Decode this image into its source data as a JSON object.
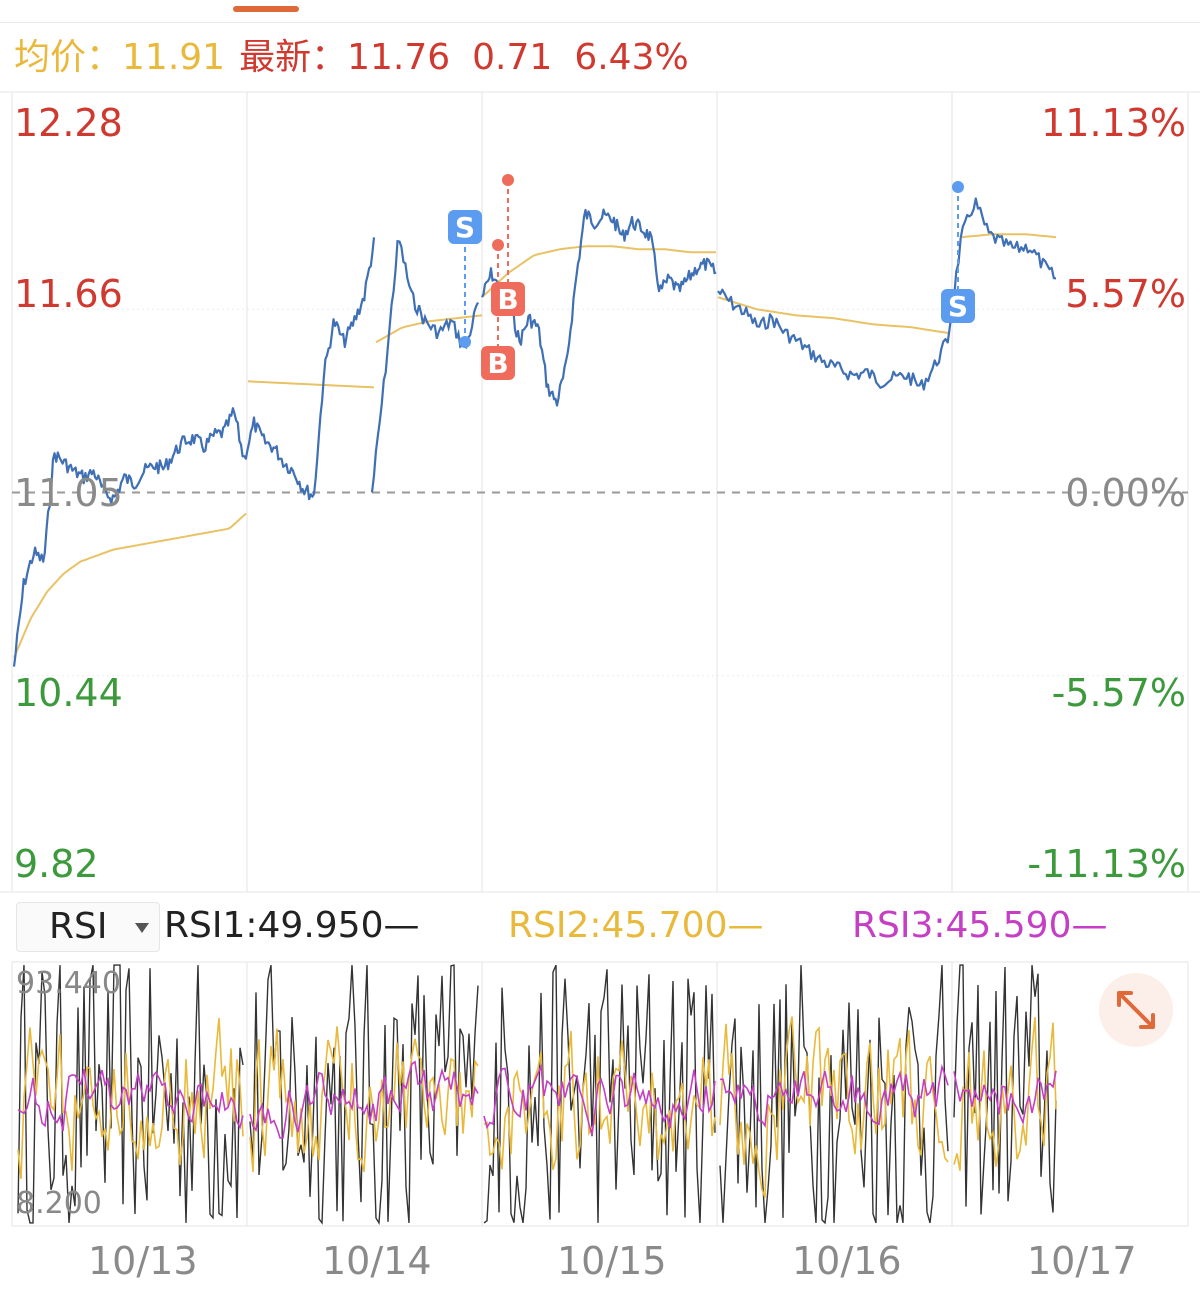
{
  "header": {
    "avg_label": "均价：",
    "avg_value": "11.91",
    "latest_label": "最新：",
    "latest_value": "11.76",
    "change": "0.71",
    "change_pct": "6.43%"
  },
  "colors": {
    "price_line": "#3f6fb4",
    "avg_line": "#e9c265",
    "up": "#d0392f",
    "down": "#3c9a3c",
    "neutral": "#8a8a8a",
    "rsi1": "#333333",
    "rsi2": "#e9b93c",
    "rsi3": "#c43fc4",
    "sell_marker": "#5b9bf0",
    "buy_marker": "#ef6b5b"
  },
  "chart_data": [
    {
      "type": "line",
      "y_left_ticks": [
        "12.28",
        "11.66",
        "11.05",
        "10.44",
        "9.82"
      ],
      "y_right_ticks": [
        "11.13%",
        "5.57%",
        "0.00%",
        "-5.57%",
        "-11.13%"
      ],
      "reference_price": 11.05,
      "ylim": [
        9.82,
        12.28
      ],
      "x_ticks": [
        "10/13",
        "10/14",
        "10/15",
        "10/16",
        "10/17"
      ],
      "days": [
        {
          "date": "10/13",
          "price": [
            10.47,
            10.75,
            10.85,
            10.82,
            11.18,
            11.15,
            11.12,
            11.1,
            11.12,
            11.05,
            11.03,
            11.1,
            11.08,
            11.12,
            11.14,
            11.13,
            11.18,
            11.22,
            11.23,
            11.2,
            11.24,
            11.25,
            11.32,
            11.16,
            11.28,
            11.22,
            11.2,
            11.15,
            11.12,
            11.06,
            11.04,
            11.45,
            11.62,
            11.55,
            11.62,
            11.7,
            11.88
          ],
          "avg": [
            10.5,
            10.63,
            10.72,
            10.78,
            10.82,
            10.84,
            10.86,
            10.87,
            10.88,
            10.89,
            10.9,
            10.91,
            10.92,
            10.93,
            10.98
          ]
        },
        {
          "date": "10/15",
          "price": [
            11.7,
            11.78,
            11.72,
            11.68,
            11.55,
            11.63,
            11.6,
            11.4,
            11.35,
            11.47,
            11.75,
            11.98,
            11.95,
            11.97,
            11.96,
            11.9,
            11.95,
            11.93,
            11.9,
            11.72,
            11.76,
            11.72,
            11.76,
            11.8,
            11.81,
            11.78
          ],
          "avg": [
            11.7,
            11.78,
            11.84,
            11.86,
            11.87,
            11.87,
            11.86,
            11.86,
            11.85,
            11.85
          ]
        },
        {
          "date": "10/16",
          "price": [
            11.72,
            11.68,
            11.65,
            11.6,
            11.63,
            11.58,
            11.55,
            11.51,
            11.48,
            11.46,
            11.44,
            11.45,
            11.42,
            11.43,
            11.44,
            11.4,
            11.47,
            11.56,
            11.9,
            12.02,
            11.91,
            11.88,
            11.86,
            11.87,
            11.81,
            11.76
          ],
          "avg": [
            11.7,
            11.66,
            11.64,
            11.63,
            11.61,
            11.6,
            11.58,
            11.9,
            11.91,
            11.91,
            11.9
          ]
        }
      ],
      "trade_marks": [
        "S",
        "B",
        "B",
        "S"
      ]
    },
    {
      "type": "line",
      "indicator": "RSI",
      "ylim": [
        8.2,
        93.44
      ],
      "y_ticks": [
        "93.440",
        "8.200"
      ],
      "series": [
        {
          "name": "RSI1",
          "value": "49.950"
        },
        {
          "name": "RSI2",
          "value": "45.700"
        },
        {
          "name": "RSI3",
          "value": "45.590"
        }
      ]
    }
  ],
  "rsi_panel": {
    "selector_label": "RSI",
    "rsi1_text": "RSI1:49.950—",
    "rsi2_text": "RSI2:45.700—",
    "rsi3_text": "RSI3:45.590—"
  }
}
